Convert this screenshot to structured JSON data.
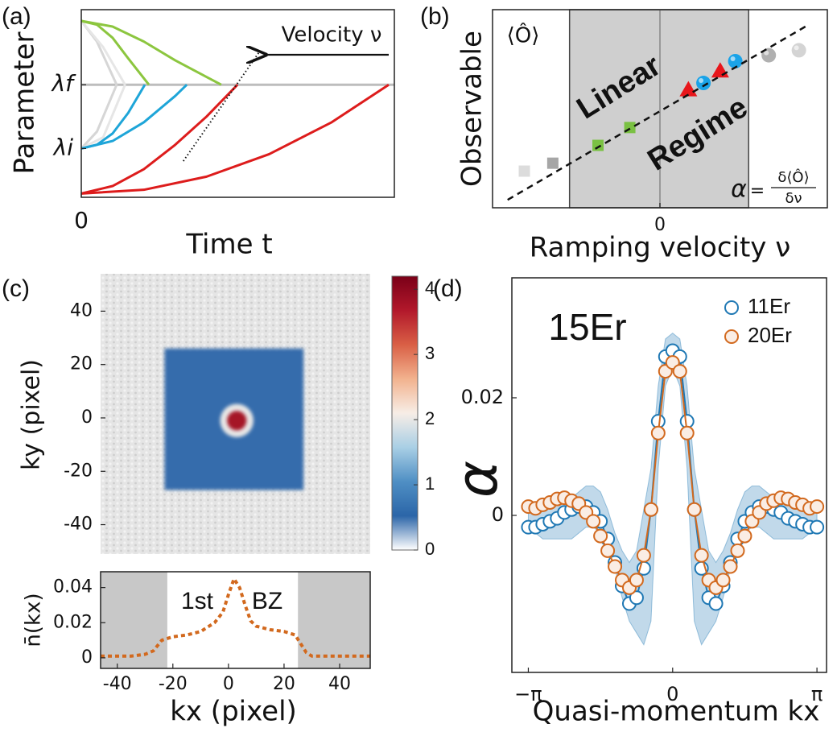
{
  "chart_data": [
    {
      "type": "line",
      "panel": "(a)",
      "xlabel": "Time t",
      "ylabel": "Parameter",
      "annotation": "Velocity ν",
      "xlim": [
        0,
        10
      ],
      "ylim": [
        0,
        10
      ],
      "xticks": [
        0
      ],
      "yticks": [
        {
          "value": 6,
          "label": "λf"
        },
        {
          "value": 2.6,
          "label": "λi"
        }
      ],
      "series": [
        {
          "color": "#bdbdbd",
          "x": [
            0,
            10
          ],
          "values": [
            6,
            6
          ]
        },
        {
          "color": "#d6d6d6",
          "x": [
            0,
            0.5,
            1.13
          ],
          "values": [
            9.4,
            8.3,
            6
          ]
        },
        {
          "color": "#e6e6e6",
          "x": [
            0,
            0.7,
            1.4
          ],
          "values": [
            9.4,
            8.0,
            6
          ]
        },
        {
          "color": "#d6d6d6",
          "x": [
            0,
            0.5,
            1.13
          ],
          "values": [
            2.6,
            3.5,
            6
          ]
        },
        {
          "color": "#e6e6e6",
          "x": [
            0,
            0.7,
            1.4
          ],
          "values": [
            2.6,
            3.2,
            6
          ]
        },
        {
          "color": "#8cc63f",
          "x": [
            0,
            0.5,
            1,
            1.5,
            2.16
          ],
          "values": [
            9.4,
            9.2,
            8.5,
            7.4,
            6
          ]
        },
        {
          "color": "#8cc63f",
          "x": [
            0,
            1,
            2,
            3,
            4.47
          ],
          "values": [
            9.4,
            9.1,
            8.3,
            7.3,
            6
          ]
        },
        {
          "color": "#1ea5d8",
          "x": [
            0,
            0.5,
            1,
            1.5,
            2.03
          ],
          "values": [
            2.6,
            2.8,
            3.4,
            4.5,
            6
          ]
        },
        {
          "color": "#1ea5d8",
          "x": [
            0,
            1,
            2,
            3,
            3.37
          ],
          "values": [
            2.6,
            3.0,
            4.0,
            5.4,
            6
          ]
        },
        {
          "color": "#dd1c1c",
          "x": [
            0,
            1,
            2,
            3,
            4,
            4.99
          ],
          "values": [
            0.2,
            0.6,
            1.5,
            2.8,
            4.3,
            6
          ]
        },
        {
          "color": "#dd1c1c",
          "x": [
            0,
            2,
            4,
            6,
            8,
            9.82
          ],
          "values": [
            0.2,
            0.4,
            1.1,
            2.3,
            4.0,
            6
          ]
        },
        {
          "color": "#111111",
          "dash": "dotted",
          "x": [
            3.26,
            5.68
          ],
          "values": [
            1.93,
            7.73
          ]
        }
      ]
    },
    {
      "type": "scatter",
      "panel": "(b)",
      "xlabel": "Ramping velocity ν",
      "ylabel": "Observable",
      "corner_label": "⟨Ô⟩",
      "annotations": [
        "Linear",
        "Regime"
      ],
      "formula": {
        "lhs": "α",
        "eq": "=",
        "numerator": "δ⟨Ô⟩",
        "denominator": "δν"
      },
      "xlim": [
        -1,
        1
      ],
      "ylim": [
        -1,
        1
      ],
      "xticks": [
        0
      ],
      "grid": true,
      "shade": [
        [
          -0.54,
          0.53
        ]
      ],
      "fit_line": {
        "x": [
          -0.91,
          0.89
        ],
        "values": [
          -0.92,
          0.85
        ]
      },
      "series": [
        {
          "marker": "square",
          "color": "#dcdcdc",
          "x": [
            -0.81
          ],
          "values": [
            -0.63
          ]
        },
        {
          "marker": "square",
          "color": "#a6a6a6",
          "x": [
            -0.64
          ],
          "values": [
            -0.55
          ]
        },
        {
          "marker": "square",
          "color": "#7ac143",
          "x": [
            -0.37,
            -0.18
          ],
          "values": [
            -0.37,
            -0.19
          ]
        },
        {
          "marker": "triangle",
          "color": "#e8161b",
          "x": [
            0.17,
            0.36
          ],
          "values": [
            0.19,
            0.38
          ]
        },
        {
          "marker": "sphere",
          "color": "#1aa3e8",
          "x": [
            0.26,
            0.45
          ],
          "values": [
            0.26,
            0.48
          ]
        },
        {
          "marker": "sphere",
          "color": "#b0b0b0",
          "x": [
            0.65
          ],
          "values": [
            0.54
          ]
        },
        {
          "marker": "sphere",
          "color": "#d4d4d4",
          "x": [
            0.83
          ],
          "values": [
            0.59
          ]
        }
      ]
    },
    {
      "type": "heatmap",
      "panel": "(c)",
      "ylabel": "ky (pixel)",
      "xlim": [
        -46,
        51
      ],
      "ylim": [
        -51,
        54
      ],
      "yticks": [
        40,
        20,
        0,
        -20,
        -40
      ],
      "clim": [
        0,
        4.2
      ],
      "cticks": [
        4,
        3,
        2,
        1,
        0
      ],
      "colormap": [
        "#ffffff",
        "#2b65a8",
        "#4f8fc4",
        "#a9cfe5",
        "#f7ede6",
        "#f2b28e",
        "#d95f45",
        "#b2182b",
        "#7a0018"
      ],
      "background": "#e2e2e2",
      "regions": [
        {
          "x": [
            -23,
            27
          ],
          "y": [
            -27,
            26
          ],
          "value": 0.5
        }
      ],
      "spots": [
        {
          "x": 3,
          "y": -1,
          "r": 6,
          "value": 2
        },
        {
          "x": 3,
          "y": -1,
          "r": 3.5,
          "value": 3.8
        }
      ]
    },
    {
      "type": "line",
      "xlabel": "kx (pixel)",
      "ylabel": "n̄(kx)",
      "annotations": [
        "1st",
        "BZ"
      ],
      "xlim": [
        -46,
        51
      ],
      "ylim": [
        -0.006,
        0.049
      ],
      "xticks": [
        -40,
        -20,
        0,
        20,
        40
      ],
      "yticks": [
        0,
        0.02,
        0.04
      ],
      "shade": [
        [
          -46,
          -22
        ],
        [
          25,
          51
        ]
      ],
      "series": [
        {
          "color": "#d2691e",
          "dash": "dashed",
          "x": [
            -46,
            -40,
            -35,
            -30,
            -27,
            -24,
            -20,
            -15,
            -10,
            -5,
            -2,
            0,
            2,
            4,
            6,
            8,
            10,
            15,
            20,
            24,
            26,
            28,
            30,
            35,
            40,
            45,
            51
          ],
          "values": [
            0.001,
            0.001,
            0.001,
            0.002,
            0.004,
            0.01,
            0.012,
            0.013,
            0.015,
            0.02,
            0.026,
            0.036,
            0.045,
            0.04,
            0.03,
            0.021,
            0.018,
            0.016,
            0.015,
            0.013,
            0.008,
            0.003,
            0.001,
            0.001,
            0.001,
            0.001,
            0.001
          ]
        }
      ]
    },
    {
      "type": "line",
      "panel": "(d)",
      "title": "15Er",
      "xlabel": "Quasi-momentum kx",
      "ylabel": "α",
      "xlim": [
        -3.5,
        3.35
      ],
      "ylim": [
        -0.0267,
        0.0404
      ],
      "xticks": [
        {
          "value": -3.1416,
          "label": "−π"
        },
        0,
        {
          "value": 3.1416,
          "label": "π"
        }
      ],
      "yticks": [
        0,
        0.02
      ],
      "legend": "upper right",
      "x": [
        -3.1416,
        -2.9845,
        -2.8274,
        -2.6704,
        -2.5133,
        -2.3562,
        -2.1991,
        -2.042,
        -1.885,
        -1.7279,
        -1.5708,
        -1.4137,
        -1.2566,
        -1.0996,
        -0.9425,
        -0.7854,
        -0.6283,
        -0.4712,
        -0.3142,
        -0.1571,
        0,
        0.1571,
        0.3142,
        0.4712,
        0.6283,
        0.7854,
        0.9425,
        1.0996,
        1.2566,
        1.4137,
        1.5708,
        1.7279,
        1.885,
        2.042,
        2.1991,
        2.3562,
        2.5133,
        2.6704,
        2.8274,
        2.9845,
        3.1416
      ],
      "series": [
        {
          "name": "11Er",
          "color": "#1f78b4",
          "marker": "open-circle",
          "values": [
            -0.002,
            -0.002,
            -0.0015,
            -0.001,
            -0.0005,
            0.0005,
            0.001,
            0.0015,
            0.0015,
            0.0005,
            -0.001,
            -0.004,
            -0.008,
            -0.012,
            -0.015,
            -0.014,
            -0.009,
            0.001,
            0.016,
            0.027,
            0.028,
            0.027,
            0.016,
            0.001,
            -0.009,
            -0.014,
            -0.015,
            -0.012,
            -0.008,
            -0.004,
            -0.001,
            0.0005,
            0.0015,
            0.0015,
            0.001,
            0.0005,
            -0.0005,
            -0.001,
            -0.0015,
            -0.002,
            -0.002
          ],
          "band_lower": [
            -0.003,
            -0.003,
            -0.004,
            -0.004,
            -0.004,
            -0.004,
            -0.004,
            -0.003,
            -0.002,
            -0.002,
            -0.003,
            -0.005,
            -0.009,
            -0.014,
            -0.018,
            -0.02,
            -0.022,
            -0.018,
            0.008,
            0.022,
            0.025,
            0.022,
            0.008,
            -0.018,
            -0.022,
            -0.02,
            -0.018,
            -0.014,
            -0.009,
            -0.005,
            -0.003,
            -0.002,
            -0.002,
            -0.003,
            -0.004,
            -0.004,
            -0.004,
            -0.004,
            -0.004,
            -0.003,
            -0.003
          ],
          "band_upper": [
            0.002,
            0.002,
            0.002,
            0.002,
            0.003,
            0.003,
            0.003,
            0.004,
            0.005,
            0.005,
            0.004,
            0.001,
            -0.003,
            -0.006,
            -0.008,
            -0.006,
            0.001,
            0.008,
            0.022,
            0.03,
            0.031,
            0.03,
            0.022,
            0.008,
            0.001,
            -0.006,
            -0.008,
            -0.006,
            -0.003,
            0.001,
            0.004,
            0.005,
            0.005,
            0.004,
            0.003,
            0.003,
            0.003,
            0.002,
            0.002,
            0.002,
            0.002
          ]
        },
        {
          "name": "20Er",
          "color": "#d2691e",
          "marker": "circle",
          "values": [
            0.0015,
            0.0012,
            0.0018,
            0.0022,
            0.0028,
            0.003,
            0.0025,
            0.002,
            0.0005,
            -0.001,
            -0.0035,
            -0.006,
            -0.0087,
            -0.011,
            -0.0123,
            -0.011,
            -0.0068,
            0.001,
            0.014,
            0.0245,
            0.026,
            0.0245,
            0.014,
            0.001,
            -0.0068,
            -0.011,
            -0.0123,
            -0.011,
            -0.0087,
            -0.006,
            -0.0035,
            -0.001,
            0.0005,
            0.002,
            0.0025,
            0.003,
            0.0028,
            0.0022,
            0.0018,
            0.0012,
            0.0015
          ]
        }
      ]
    }
  ]
}
